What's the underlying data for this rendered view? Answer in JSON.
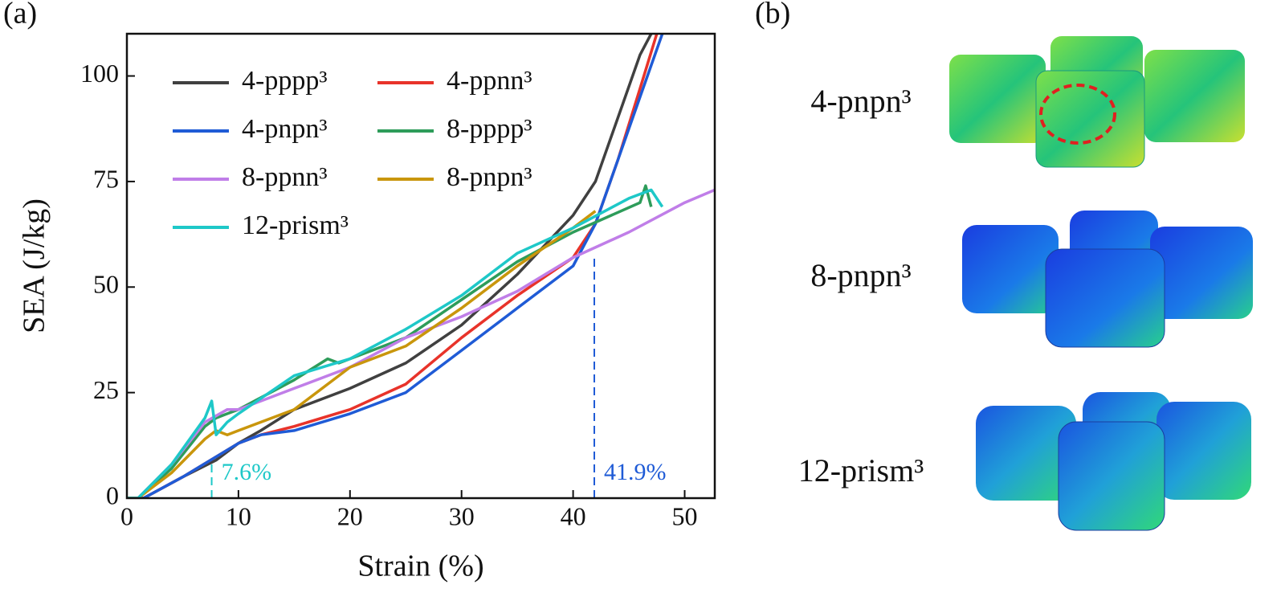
{
  "chart_data": {
    "type": "line",
    "panel_label": "(a)",
    "x_label": "Strain (%)",
    "y_label": "SEA (J/kg)",
    "xlim": [
      0,
      52.7
    ],
    "ylim": [
      0,
      110
    ],
    "xticks": [
      0,
      10,
      20,
      30,
      40,
      50
    ],
    "yticks": [
      0,
      25,
      50,
      75,
      100
    ],
    "series": [
      {
        "name": "4-pppp³",
        "color": "#404040",
        "x": [
          0,
          1.5,
          5,
          8,
          10,
          12,
          15,
          20,
          25,
          30,
          35,
          40,
          42,
          44,
          46,
          47
        ],
        "values": [
          0,
          0,
          5,
          9,
          13,
          16,
          21,
          26,
          32,
          41,
          53,
          67,
          75,
          90,
          105,
          110
        ]
      },
      {
        "name": "4-ppnn³",
        "color": "#e8332a",
        "x": [
          0,
          1.5,
          5,
          10,
          12,
          15,
          20,
          25,
          30,
          35,
          40,
          42,
          44,
          46,
          47.5
        ],
        "values": [
          0,
          0,
          5,
          13,
          15,
          17,
          21,
          27,
          38,
          48,
          57,
          65,
          80,
          97,
          110
        ]
      },
      {
        "name": "4-pnpn³",
        "color": "#1f5bd6",
        "x": [
          0,
          1.5,
          5,
          10,
          12,
          15,
          20,
          25,
          30,
          35,
          40,
          42,
          44,
          46,
          48
        ],
        "values": [
          0,
          0,
          5,
          13,
          15,
          16,
          20,
          25,
          35,
          45,
          55,
          65,
          80,
          95,
          110
        ]
      },
      {
        "name": "8-pppp³",
        "color": "#2e9c5a",
        "x": [
          0,
          1,
          4,
          7,
          8,
          9,
          10,
          15,
          18,
          19,
          25,
          30,
          35,
          40,
          46,
          46.5,
          47
        ],
        "values": [
          0,
          0,
          7,
          17,
          19,
          20,
          21,
          28,
          33,
          32,
          38,
          47,
          56,
          63,
          70,
          74,
          69
        ]
      },
      {
        "name": "8-ppnn³",
        "color": "#c07ee8",
        "x": [
          0,
          1,
          4,
          7,
          9,
          10,
          15,
          20,
          25,
          30,
          35,
          40,
          45,
          50,
          52.7
        ],
        "values": [
          0,
          0,
          8,
          18,
          21,
          21,
          26,
          31,
          38,
          43,
          49,
          57,
          63,
          70,
          73
        ]
      },
      {
        "name": "8-pnpn³",
        "color": "#c9960c",
        "x": [
          0,
          1,
          4,
          7,
          8,
          9,
          10,
          15,
          20,
          25,
          30,
          35,
          40,
          42
        ],
        "values": [
          0,
          0,
          6,
          14,
          16,
          15,
          16,
          21,
          31,
          36,
          45,
          55,
          64,
          68
        ]
      },
      {
        "name": "12-prism³",
        "color": "#1ec8c8",
        "x": [
          0,
          1,
          4,
          7,
          7.6,
          8,
          9,
          10,
          15,
          20,
          25,
          30,
          35,
          40,
          45,
          47,
          48
        ],
        "values": [
          0,
          0,
          8,
          19,
          23,
          15,
          18,
          20,
          29,
          33,
          40,
          48,
          58,
          64,
          71,
          73,
          69
        ]
      }
    ],
    "annotations": [
      {
        "text": "7.6%",
        "x": 7.6,
        "y": 9,
        "color": "#1ec8c8"
      },
      {
        "text": "41.9%",
        "x": 41.9,
        "y": 57,
        "color": "#1f5bd6"
      }
    ]
  },
  "panel_b": {
    "label": "(b)",
    "items": [
      "4-pnpn³",
      "8-pnpn³",
      "12-prism³"
    ]
  }
}
